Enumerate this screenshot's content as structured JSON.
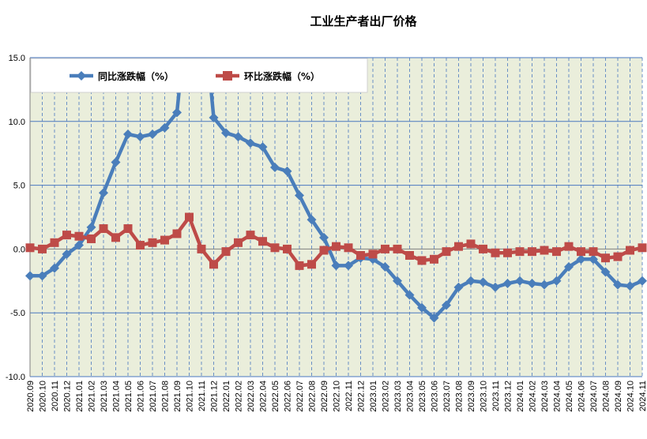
{
  "chart_data": {
    "type": "line",
    "title": "工业生产者出厂价格",
    "ylim": [
      -10,
      15
    ],
    "yticks": [
      "15.0",
      "10.0",
      "5.0",
      "0.0",
      "-5.0",
      "-10.0"
    ],
    "ytick_values": [
      15,
      10,
      5,
      0,
      -5,
      -10
    ],
    "grid": "horizontal solid, vertical dashed",
    "legend_position": "top-left",
    "categories": [
      "2020.09",
      "2020.10",
      "2020.11",
      "2020.12",
      "2021.01",
      "2021.02",
      "2021.03",
      "2021.04",
      "2021.05",
      "2021.06",
      "2021.07",
      "2021.08",
      "2021.09",
      "2021.10",
      "2021.11",
      "2021.12",
      "2022.01",
      "2022.02",
      "2022.03",
      "2022.04",
      "2022.05",
      "2022.06",
      "2022.07",
      "2022.08",
      "2022.09",
      "2022.10",
      "2022.11",
      "2022.12",
      "2023.01",
      "2023.02",
      "2023.03",
      "2023.04",
      "2023.05",
      "2023.06",
      "2023.07",
      "2023.08",
      "2023.09",
      "2023.10",
      "2023.11",
      "2023.12",
      "2024.01",
      "2024.02",
      "2024.03",
      "2024.04",
      "2024.05",
      "2024.06",
      "2024.07",
      "2024.08",
      "2024.09",
      "2024.10",
      "2024.11"
    ],
    "series": [
      {
        "name": "同比涨跌幅（%）",
        "color": "#4a7ebb",
        "marker": "diamond",
        "values": [
          -2.1,
          -2.1,
          -1.5,
          -0.4,
          0.3,
          1.7,
          4.4,
          6.8,
          9.0,
          8.8,
          9.0,
          9.5,
          10.7,
          null,
          null,
          10.3,
          9.1,
          8.8,
          8.3,
          8.0,
          6.4,
          6.1,
          4.2,
          2.3,
          0.9,
          -1.3,
          -1.3,
          -0.7,
          -0.8,
          -1.4,
          -2.5,
          -3.6,
          -4.6,
          -5.4,
          -4.4,
          -3.0,
          -2.5,
          -2.6,
          -3.0,
          -2.7,
          -2.5,
          -2.7,
          -2.8,
          -2.5,
          -1.4,
          -0.8,
          -0.8,
          -1.8,
          -2.8,
          -2.9,
          -2.5
        ]
      },
      {
        "name": "环比涨跌幅（%）",
        "color": "#be4b48",
        "marker": "square",
        "values": [
          0.1,
          0.0,
          0.5,
          1.1,
          1.0,
          0.8,
          1.6,
          0.9,
          1.6,
          0.3,
          0.5,
          0.7,
          1.2,
          2.5,
          0.0,
          -1.2,
          -0.2,
          0.5,
          1.1,
          0.6,
          0.1,
          0.0,
          -1.3,
          -1.2,
          -0.1,
          0.2,
          0.1,
          -0.5,
          -0.4,
          0.0,
          0.0,
          -0.5,
          -0.9,
          -0.8,
          -0.2,
          0.2,
          0.4,
          0.0,
          -0.3,
          -0.3,
          -0.2,
          -0.2,
          -0.1,
          -0.2,
          0.2,
          -0.2,
          -0.2,
          -0.7,
          -0.6,
          -0.1,
          0.1
        ]
      }
    ]
  }
}
